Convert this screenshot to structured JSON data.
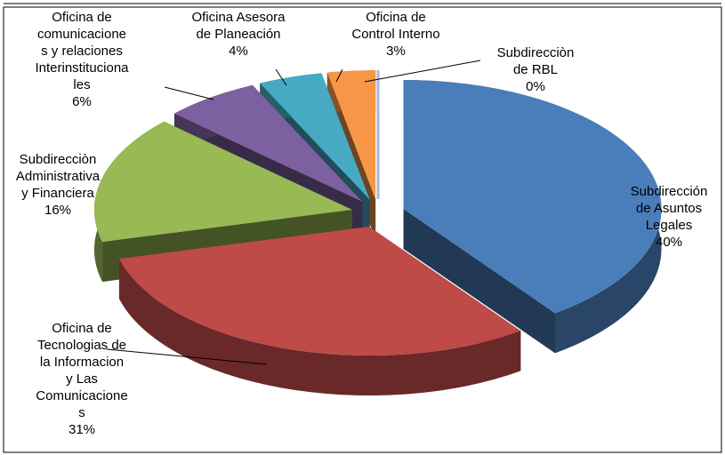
{
  "chart_data": {
    "type": "pie",
    "categories": [
      [
        "Subdirección",
        "de Asuntos",
        "Legales"
      ],
      [
        "Oficina de",
        "Tecnologias de",
        "la Informacion",
        "y Las",
        "Comunicacione",
        "s"
      ],
      [
        "Subdirecciòn",
        "Administrativa",
        "y Financiera"
      ],
      [
        "Oficina de",
        "comunicacione",
        "s y relaciones",
        "Interinstituciona",
        "les"
      ],
      [
        "Oficina Asesora",
        "de Planeación"
      ],
      [
        "Oficina de",
        "Control Interno"
      ],
      [
        "Subdirecciòn",
        "de RBL"
      ]
    ],
    "values": [
      40,
      31,
      16,
      6,
      4,
      3,
      0
    ],
    "value_labels": [
      "40%",
      "31%",
      "16%",
      "6%",
      "4%",
      "3%",
      "0%"
    ],
    "colors": [
      "#4a7ebb",
      "#be4b48",
      "#98b954",
      "#7d60a0",
      "#46aac5",
      "#f79646",
      "#a5b9da"
    ],
    "exploded": true,
    "three_d": true
  }
}
